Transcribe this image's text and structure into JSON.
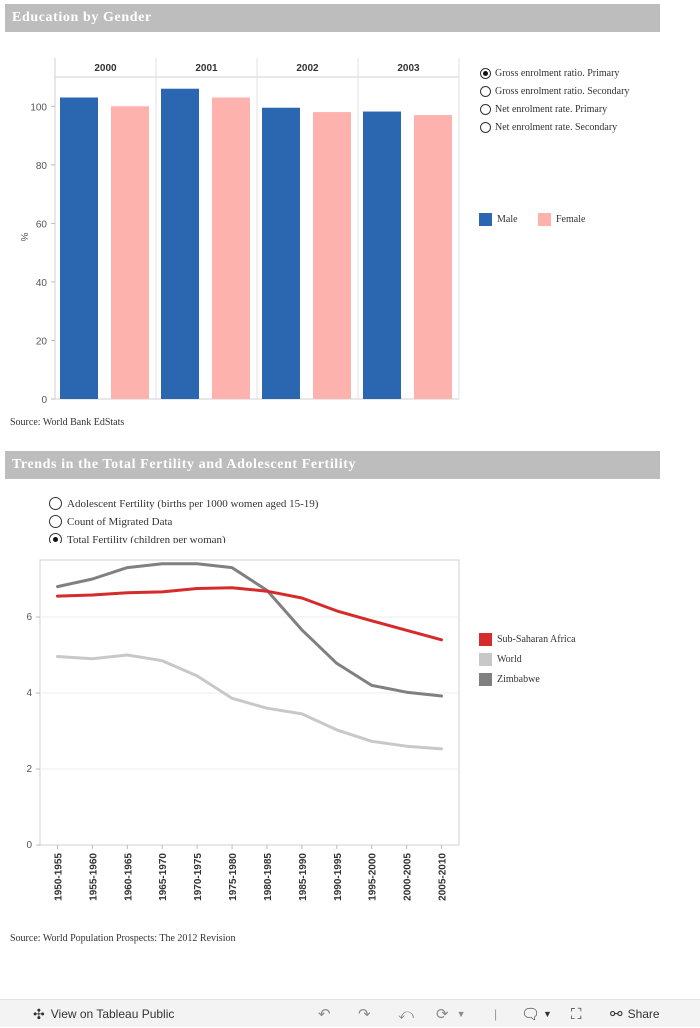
{
  "education": {
    "title": "Education by Gender",
    "source": "Source: World Bank EdStats",
    "options": [
      {
        "label": "Gross enrolment ratio. Primary",
        "selected": true
      },
      {
        "label": "Gross enrolment ratio. Secondary",
        "selected": false
      },
      {
        "label": "Net enrolment rate. Primary",
        "selected": false
      },
      {
        "label": "Net enrolment rate. Secondary",
        "selected": false
      }
    ],
    "legend": [
      {
        "label": "Male",
        "color": "#2b67b1"
      },
      {
        "label": "Female",
        "color": "#fdb2ae"
      }
    ]
  },
  "fertility": {
    "title": "Trends in the Total Fertility and Adolescent Fertility",
    "source": "Source: World Population Prospects: The 2012 Revision",
    "options": [
      {
        "label": "Adolescent Fertility (births per 1000 women aged 15-19)",
        "selected": false
      },
      {
        "label": "Count of Migrated Data",
        "selected": false
      },
      {
        "label": "Total Fertility (children per woman)",
        "selected": true
      }
    ],
    "legend": [
      {
        "label": "Sub-Saharan Africa",
        "color": "#d62b2b"
      },
      {
        "label": "World",
        "color": "#c8c8c8"
      },
      {
        "label": "Zimbabwe",
        "color": "#808080"
      }
    ]
  },
  "chart_data": [
    {
      "type": "bar",
      "title": "Education by Gender",
      "ylabel": "%",
      "ylim": [
        0,
        110
      ],
      "yticks": [
        0,
        20,
        40,
        60,
        80,
        100
      ],
      "categories": [
        "2000",
        "2001",
        "2002",
        "2003"
      ],
      "series": [
        {
          "name": "Male",
          "color": "#2b67b1",
          "values": [
            103,
            106,
            99.5,
            98.2
          ]
        },
        {
          "name": "Female",
          "color": "#fdb2ae",
          "values": [
            100,
            103,
            98,
            97
          ]
        }
      ]
    },
    {
      "type": "line",
      "title": "Trends in the Total Fertility and Adolescent Fertility",
      "ylabel": "",
      "ylim": [
        0,
        7.5
      ],
      "yticks": [
        0,
        2,
        4,
        6
      ],
      "x": [
        "1950-1955",
        "1955-1960",
        "1960-1965",
        "1965-1970",
        "1970-1975",
        "1975-1980",
        "1980-1985",
        "1985-1990",
        "1990-1995",
        "1995-2000",
        "2000-2005",
        "2005-2010"
      ],
      "series": [
        {
          "name": "Sub-Saharan Africa",
          "color": "#d62b2b",
          "values": [
            6.55,
            6.58,
            6.64,
            6.66,
            6.75,
            6.77,
            6.68,
            6.5,
            6.16,
            5.9,
            5.65,
            5.4
          ]
        },
        {
          "name": "World",
          "color": "#c8c8c8",
          "values": [
            4.96,
            4.9,
            5.0,
            4.85,
            4.45,
            3.86,
            3.6,
            3.45,
            3.03,
            2.73,
            2.6,
            2.53
          ]
        },
        {
          "name": "Zimbabwe",
          "color": "#808080",
          "values": [
            6.8,
            7.0,
            7.3,
            7.4,
            7.4,
            7.3,
            6.7,
            5.66,
            4.78,
            4.2,
            4.02,
            3.92
          ]
        }
      ]
    }
  ],
  "footer": {
    "view_label": "View on Tableau Public",
    "share_label": "Share",
    "separator": "|"
  }
}
